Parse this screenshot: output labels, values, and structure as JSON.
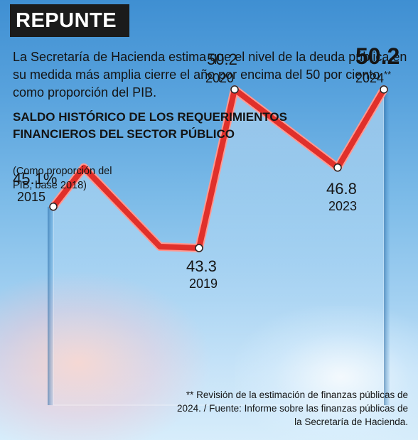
{
  "header": {
    "title": "REPUNTE"
  },
  "intro": "La Secretaría de Hacienda estima que el nivel de la deuda pública en su medida más amplia cierre el año por encima del 50 por ciento como proporción del PIB.",
  "chart_data": {
    "type": "line",
    "title": "SALDO HISTÓRICO DE LOS REQUERIMIENTOS FINANCIEROS DEL SECTOR PÚBLICO",
    "subtitle": "(Como proporción del PIB, base 2018)",
    "x": [
      "2015",
      "2019",
      "2020",
      "2023",
      "2024**"
    ],
    "series": [
      {
        "values": [
          45.1,
          43.3,
          50.2,
          46.8,
          50.2
        ]
      }
    ],
    "data_labels": [
      "45.1%",
      "43.3",
      "50.2",
      "46.8",
      "50.2"
    ],
    "ylim": [
      42,
      51
    ],
    "grid": false,
    "colors": {
      "line": "#e0302b",
      "line_edge": "#ff9a93",
      "marker_fill": "#ffffff",
      "marker_stroke": "#222222"
    }
  },
  "footnote": "** Revisión de la estimación de finanzas públicas de 2024. / Fuente: Informe sobre las finanzas públicas de la Secretaría de Hacienda."
}
